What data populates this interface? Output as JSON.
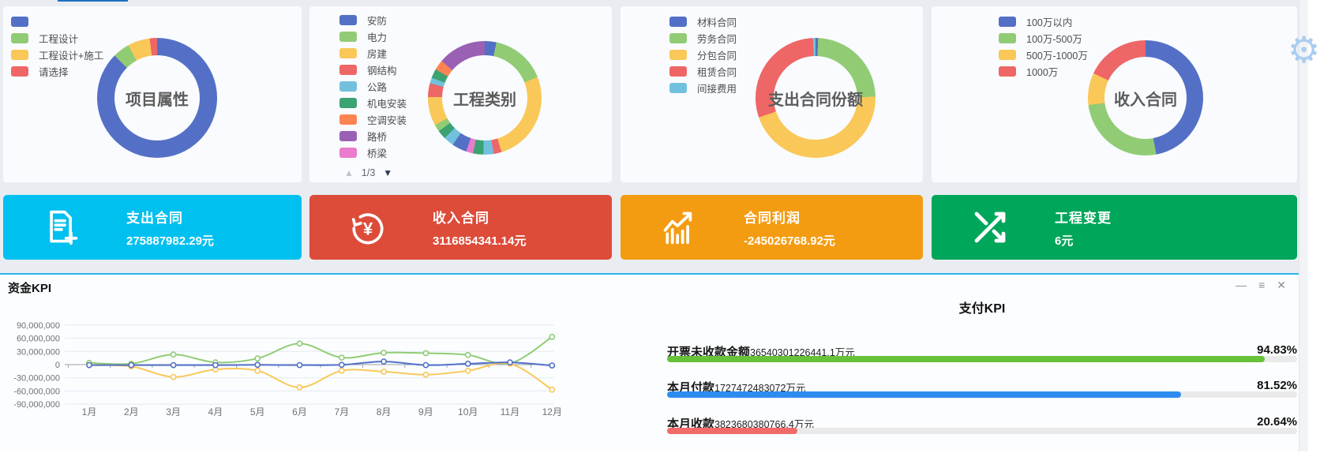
{
  "icons": {
    "gear": "⚙",
    "minimize": "—",
    "menu": "≡",
    "close": "✕",
    "page_up": "▲",
    "page_down": "▼"
  },
  "palette": [
    "#5470c6",
    "#91cc75",
    "#fac858",
    "#ee6666",
    "#73c0de",
    "#3ba272",
    "#fc8452",
    "#9a60b4",
    "#ea7ccc"
  ],
  "chart_data": [
    {
      "type": "pie",
      "title": "项目属性",
      "legend": [
        {
          "label": "",
          "color": "#5470c6"
        },
        {
          "label": "工程设计",
          "color": "#91cc75"
        },
        {
          "label": "工程设计+施工",
          "color": "#fac858"
        },
        {
          "label": "请选择",
          "color": "#ee6666"
        }
      ],
      "segments": [
        {
          "color": "#5470c6",
          "value": 87.5
        },
        {
          "color": "#91cc75",
          "value": 4.5
        },
        {
          "color": "#fac858",
          "value": 6
        },
        {
          "color": "#ee6666",
          "value": 2
        }
      ]
    },
    {
      "type": "pie",
      "title": "工程类别",
      "pagination": "1/3",
      "legend": [
        {
          "label": "安防",
          "color": "#5470c6"
        },
        {
          "label": "电力",
          "color": "#91cc75"
        },
        {
          "label": "房建",
          "color": "#fac858"
        },
        {
          "label": "钢结构",
          "color": "#ee6666"
        },
        {
          "label": "公路",
          "color": "#73c0de"
        },
        {
          "label": "机电安装",
          "color": "#3ba272"
        },
        {
          "label": "空调安装",
          "color": "#fc8452"
        },
        {
          "label": "路桥",
          "color": "#9a60b4"
        },
        {
          "label": "桥梁",
          "color": "#ea7ccc"
        }
      ],
      "segments": [
        {
          "color": "#5470c6",
          "value": 3.3
        },
        {
          "color": "#91cc75",
          "value": 15.7
        },
        {
          "color": "#fac858",
          "value": 26.1
        },
        {
          "color": "#ee6666",
          "value": 2.3
        },
        {
          "color": "#73c0de",
          "value": 2.9
        },
        {
          "color": "#3ba272",
          "value": 2.9
        },
        {
          "color": "#ea7ccc",
          "value": 2.0
        },
        {
          "color": "#5470c6",
          "value": 4.2
        },
        {
          "color": "#73c0de",
          "value": 2.9
        },
        {
          "color": "#3ba272",
          "value": 2.6
        },
        {
          "color": "#91cc75",
          "value": 2.0
        },
        {
          "color": "#fac858",
          "value": 8.2
        },
        {
          "color": "#ee6666",
          "value": 3.9
        },
        {
          "color": "#73c0de",
          "value": 1.6
        },
        {
          "color": "#3ba272",
          "value": 2.6
        },
        {
          "color": "#fc8452",
          "value": 2.9
        },
        {
          "color": "#9a60b4",
          "value": 13.7
        }
      ]
    },
    {
      "type": "pie",
      "title": "支出合同份额",
      "legend": [
        {
          "label": "材料合同",
          "color": "#5470c6"
        },
        {
          "label": "劳务合同",
          "color": "#91cc75"
        },
        {
          "label": "分包合同",
          "color": "#fac858"
        },
        {
          "label": "租赁合同",
          "color": "#ee6666"
        },
        {
          "label": "间接费用",
          "color": "#73c0de"
        }
      ],
      "segments": [
        {
          "color": "#5470c6",
          "value": 0.7
        },
        {
          "color": "#91cc75",
          "value": 24
        },
        {
          "color": "#fac858",
          "value": 45
        },
        {
          "color": "#ee6666",
          "value": 29.6
        },
        {
          "color": "#73c0de",
          "value": 0.7
        }
      ]
    },
    {
      "type": "pie",
      "title": "收入合同",
      "legend": [
        {
          "label": "100万以内",
          "color": "#5470c6"
        },
        {
          "label": "100万-500万",
          "color": "#91cc75"
        },
        {
          "label": "500万-1000万",
          "color": "#fac858"
        },
        {
          "label": "1000万",
          "color": "#ee6666"
        }
      ],
      "segments": [
        {
          "color": "#5470c6",
          "value": 47
        },
        {
          "color": "#91cc75",
          "value": 26
        },
        {
          "color": "#fac858",
          "value": 9
        },
        {
          "color": "#ee6666",
          "value": 18
        }
      ]
    },
    {
      "type": "line",
      "title": "资金KPI",
      "x": [
        "1月",
        "2月",
        "3月",
        "4月",
        "5月",
        "6月",
        "7月",
        "8月",
        "9月",
        "10月",
        "11月",
        "12月"
      ],
      "yticks": [
        "90,000,000",
        "60,000,000",
        "30,000,000",
        "0",
        "-30,000,000",
        "-60,000,000",
        "-90,000,000"
      ],
      "ylim": [
        -90000000,
        90000000
      ],
      "grid": true,
      "series": [
        {
          "color": "#91cc75",
          "values": [
            4000000,
            2000000,
            23000000,
            5000000,
            14000000,
            48000000,
            16000000,
            27000000,
            26000000,
            22000000,
            3000000,
            63000000
          ]
        },
        {
          "color": "#fac858",
          "values": [
            -1000000,
            -4000000,
            -28000000,
            -11000000,
            -14000000,
            -52000000,
            -14000000,
            -16000000,
            -23000000,
            -14000000,
            2000000,
            -57000000
          ]
        },
        {
          "color": "#5470c6",
          "values": [
            -1000000,
            -1000000,
            -1000000,
            -1000000,
            -500000,
            -1000000,
            -500000,
            7000000,
            -1000000,
            2000000,
            5000000,
            -2000000
          ]
        }
      ]
    },
    {
      "type": "bar",
      "title": "支付KPI",
      "bars": [
        {
          "label": "开票未收款金额",
          "amount": "36540301226441.1万元",
          "percent": "94.83%",
          "value": 94.83,
          "color": "#67c23a"
        },
        {
          "label": "本月付款",
          "amount": "1727472483072万元",
          "percent": "81.52%",
          "value": 81.52,
          "color": "#2d8cf0"
        },
        {
          "label": "本月收款",
          "amount": "3823680380766.4万元",
          "percent": "20.64%",
          "value": 20.64,
          "color": "#f16b6b"
        }
      ]
    }
  ],
  "kpi_cards": [
    {
      "title": "支出合同",
      "value": "275887982.29元",
      "color": "#00c0ef",
      "icon": "document-plus"
    },
    {
      "title": "收入合同",
      "value": "3116854341.14元",
      "color": "#dd4b39",
      "icon": "refresh-yen"
    },
    {
      "title": "合同利润",
      "value": "-245026768.92元",
      "color": "#f39c12",
      "icon": "chart-arrow"
    },
    {
      "title": "工程变更",
      "value": "6元",
      "color": "#00a65a",
      "icon": "shuffle"
    }
  ],
  "fund_panel": {
    "title": "资金KPI"
  },
  "payment_panel": {
    "title": "支付KPI"
  }
}
